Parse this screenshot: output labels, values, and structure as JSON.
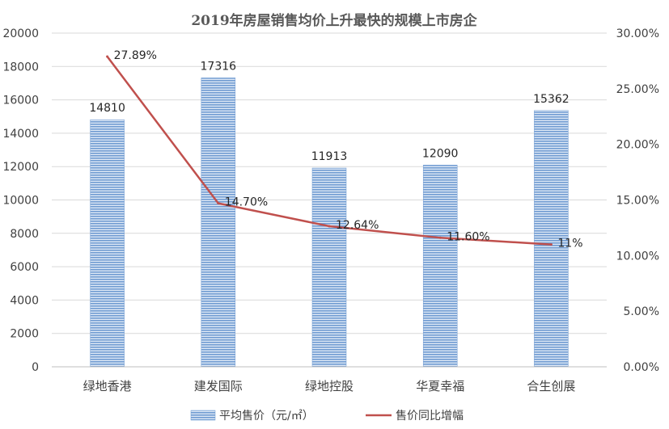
{
  "chart_data": {
    "type": "bar",
    "title": "2019年房屋销售均价上升最快的规模上市房企",
    "categories": [
      "绿地香港",
      "建发国际",
      "绿地控股",
      "华夏幸福",
      "合生创展"
    ],
    "series": [
      {
        "name": "平均售价（元/㎡）",
        "type": "bar",
        "axis": "left",
        "values": [
          14810,
          17316,
          11913,
          12090,
          15362
        ],
        "labels": [
          "14810",
          "17316",
          "11913",
          "12090",
          "15362"
        ],
        "color": "#6f9bd1"
      },
      {
        "name": "售价同比增幅",
        "type": "line",
        "axis": "right",
        "values": [
          27.89,
          14.7,
          12.64,
          11.6,
          11.0
        ],
        "labels": [
          "27.89%",
          "14.70%",
          "12.64%",
          "11.60%",
          "11%"
        ],
        "color": "#c0504d"
      }
    ],
    "y_left": {
      "ylim": [
        0,
        20000
      ],
      "ticks": [
        "0",
        "2000",
        "4000",
        "6000",
        "8000",
        "10000",
        "12000",
        "14000",
        "16000",
        "18000",
        "20000"
      ]
    },
    "y_right": {
      "ylim": [
        0,
        30
      ],
      "ticks": [
        "0.00%",
        "5.00%",
        "10.00%",
        "15.00%",
        "20.00%",
        "25.00%",
        "30.00%"
      ]
    },
    "grid": true,
    "legend": "bottom"
  }
}
